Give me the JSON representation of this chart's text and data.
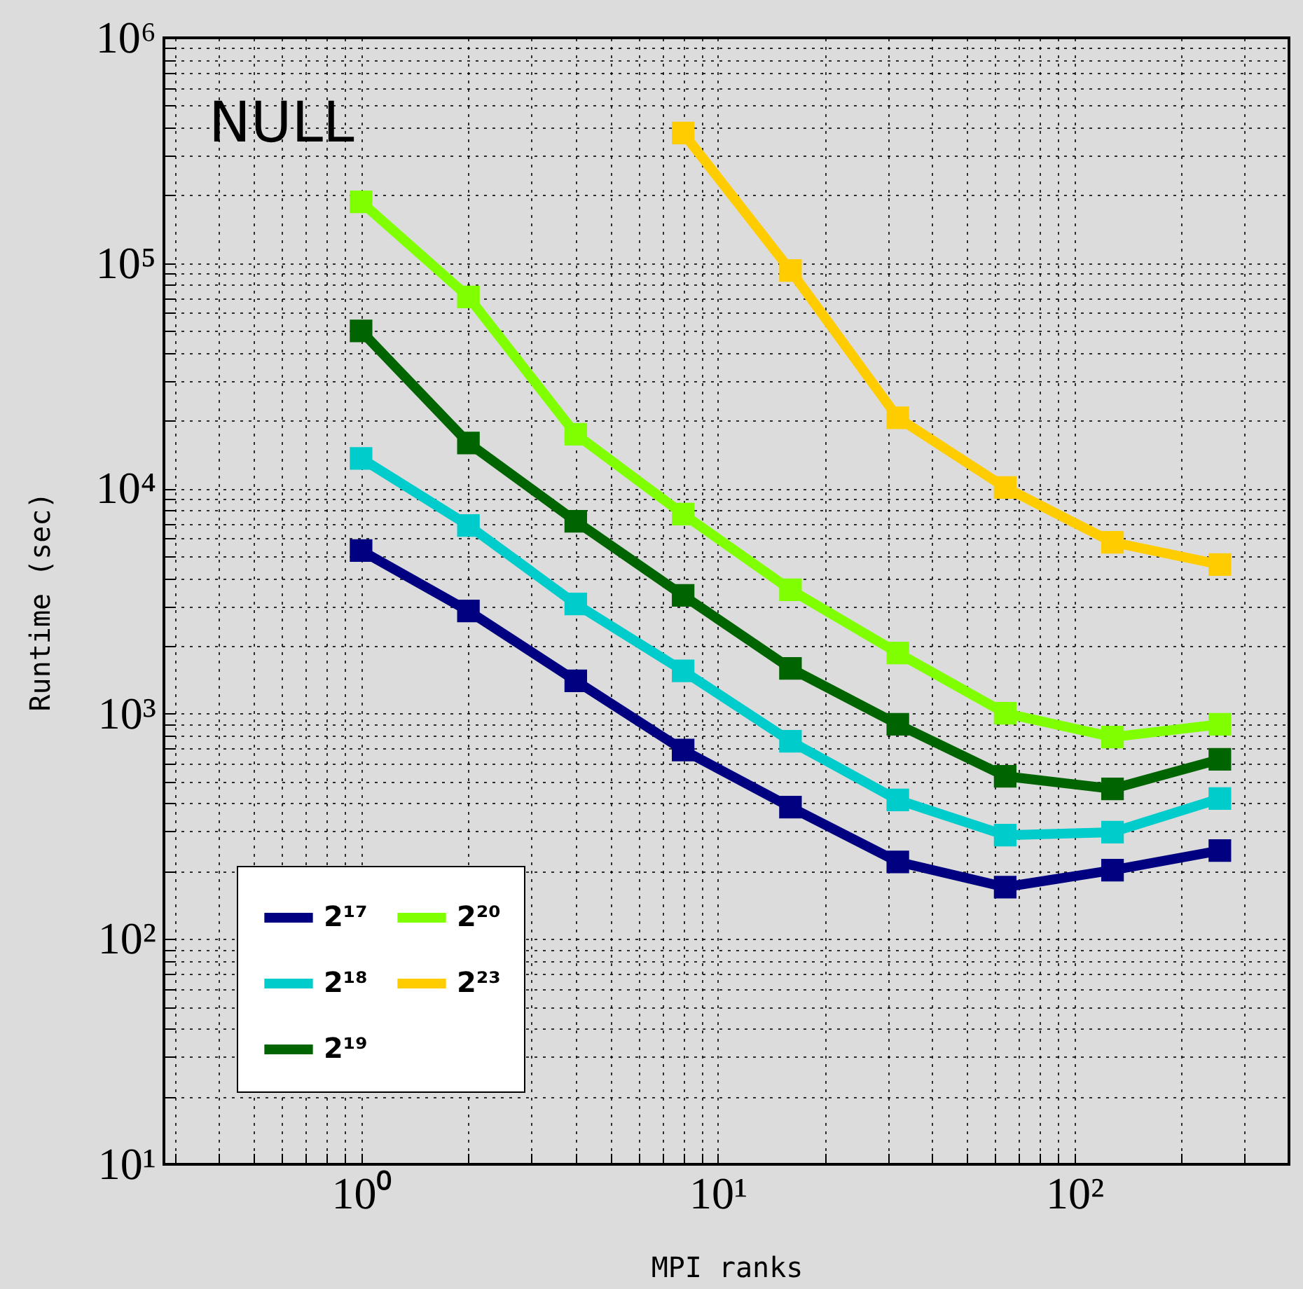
{
  "chart_data": {
    "type": "line",
    "title": "NULL",
    "xlabel": "MPI ranks",
    "ylabel": "Runtime (sec)",
    "log": "xy",
    "grid": true,
    "legend": "bottom left",
    "marker": "square",
    "line_style": "solid",
    "xlim": [
      0.28,
      400
    ],
    "xticks": [
      {
        "value": 0.3,
        "label": null
      },
      {
        "value": 0.4,
        "label": null
      },
      {
        "value": 0.5,
        "label": null
      },
      {
        "value": 0.6,
        "label": null
      },
      {
        "value": 0.7,
        "label": null
      },
      {
        "value": 0.8,
        "label": null
      },
      {
        "value": 0.9,
        "label": null
      },
      {
        "value": 1,
        "label": "10⁰"
      },
      {
        "value": 2,
        "label": null
      },
      {
        "value": 3,
        "label": null
      },
      {
        "value": 4,
        "label": null
      },
      {
        "value": 5,
        "label": null
      },
      {
        "value": 6,
        "label": null
      },
      {
        "value": 7,
        "label": null
      },
      {
        "value": 8,
        "label": null
      },
      {
        "value": 9,
        "label": null
      },
      {
        "value": 10,
        "label": "10¹"
      },
      {
        "value": 20,
        "label": null
      },
      {
        "value": 30,
        "label": null
      },
      {
        "value": 40,
        "label": null
      },
      {
        "value": 50,
        "label": null
      },
      {
        "value": 60,
        "label": null
      },
      {
        "value": 70,
        "label": null
      },
      {
        "value": 80,
        "label": null
      },
      {
        "value": 90,
        "label": null
      },
      {
        "value": 100,
        "label": "10²"
      },
      {
        "value": 200,
        "label": null
      },
      {
        "value": 300,
        "label": null
      }
    ],
    "ylim": [
      10,
      1000000
    ],
    "yticks": [
      {
        "value": 10,
        "label": "10¹"
      },
      {
        "value": 20,
        "label": null
      },
      {
        "value": 30,
        "label": null
      },
      {
        "value": 40,
        "label": null
      },
      {
        "value": 50,
        "label": null
      },
      {
        "value": 60,
        "label": null
      },
      {
        "value": 70,
        "label": null
      },
      {
        "value": 80,
        "label": null
      },
      {
        "value": 90,
        "label": null
      },
      {
        "value": 100,
        "label": "10²"
      },
      {
        "value": 200,
        "label": null
      },
      {
        "value": 300,
        "label": null
      },
      {
        "value": 400,
        "label": null
      },
      {
        "value": 500,
        "label": null
      },
      {
        "value": 600,
        "label": null
      },
      {
        "value": 700,
        "label": null
      },
      {
        "value": 800,
        "label": null
      },
      {
        "value": 900,
        "label": null
      },
      {
        "value": 1000,
        "label": "10³"
      },
      {
        "value": 2000,
        "label": null
      },
      {
        "value": 3000,
        "label": null
      },
      {
        "value": 4000,
        "label": null
      },
      {
        "value": 5000,
        "label": null
      },
      {
        "value": 6000,
        "label": null
      },
      {
        "value": 7000,
        "label": null
      },
      {
        "value": 8000,
        "label": null
      },
      {
        "value": 9000,
        "label": null
      },
      {
        "value": 10000,
        "label": "10⁴"
      },
      {
        "value": 20000,
        "label": null
      },
      {
        "value": 30000,
        "label": null
      },
      {
        "value": 40000,
        "label": null
      },
      {
        "value": 50000,
        "label": null
      },
      {
        "value": 60000,
        "label": null
      },
      {
        "value": 70000,
        "label": null
      },
      {
        "value": 80000,
        "label": null
      },
      {
        "value": 90000,
        "label": null
      },
      {
        "value": 100000,
        "label": "10⁵"
      },
      {
        "value": 200000,
        "label": null
      },
      {
        "value": 300000,
        "label": null
      },
      {
        "value": 400000,
        "label": null
      },
      {
        "value": 500000,
        "label": null
      },
      {
        "value": 600000,
        "label": null
      },
      {
        "value": 700000,
        "label": null
      },
      {
        "value": 800000,
        "label": null
      },
      {
        "value": 900000,
        "label": null
      },
      {
        "value": 1000000,
        "label": "10⁶"
      }
    ],
    "x": [
      1,
      2,
      4,
      8,
      16,
      32,
      64,
      128,
      256
    ],
    "series": [
      {
        "name": "2¹⁷",
        "color": "#000080",
        "values": [
          5300,
          2860,
          1400,
          690,
          385,
          220,
          170,
          202,
          247
        ]
      },
      {
        "name": "2¹⁸",
        "color": "#00cccc",
        "values": [
          13600,
          6850,
          3070,
          1550,
          755,
          414,
          289,
          298,
          420
        ]
      },
      {
        "name": "2¹⁹",
        "color": "#006400",
        "values": [
          50000,
          15900,
          7150,
          3350,
          1590,
          897,
          528,
          464,
          627
        ]
      },
      {
        "name": "2²⁰",
        "color": "#80ff00",
        "values": [
          187000,
          70800,
          17400,
          7690,
          3550,
          1860,
          1005,
          788,
          897
        ]
      },
      {
        "name": "2²³",
        "color": "#ffcc00",
        "x": [
          8,
          16,
          32,
          64,
          128,
          256
        ],
        "values": [
          378000,
          92800,
          20600,
          10100,
          5770,
          4590
        ]
      }
    ]
  }
}
